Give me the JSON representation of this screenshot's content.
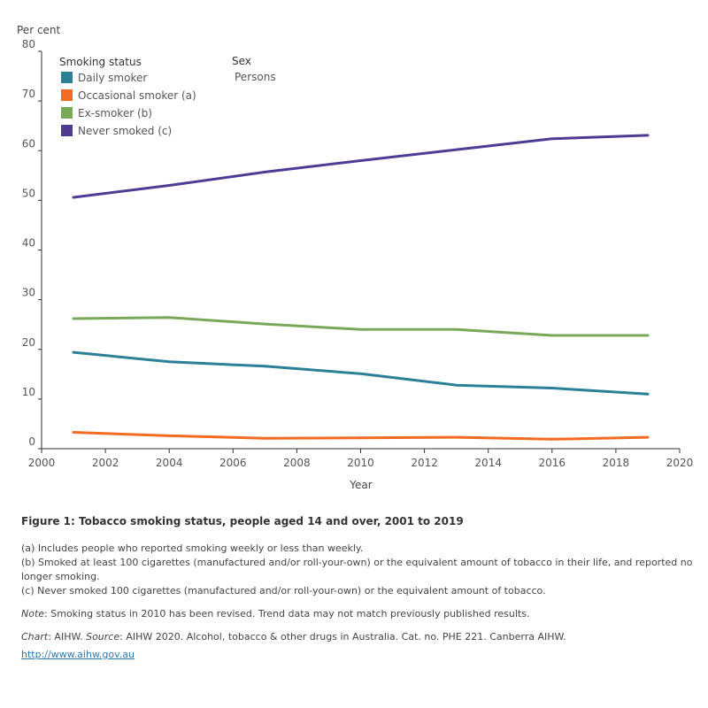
{
  "chart_data": {
    "type": "line",
    "ylabel": "Per cent",
    "xlabel": "Year",
    "ylim": [
      0,
      80
    ],
    "xlim": [
      2000,
      2020
    ],
    "y_ticks": [
      0,
      10,
      20,
      30,
      40,
      50,
      60,
      70,
      80
    ],
    "x_ticks": [
      2000,
      2002,
      2004,
      2006,
      2008,
      2010,
      2012,
      2014,
      2016,
      2018,
      2020
    ],
    "grid": false,
    "legend_title": "Smoking status",
    "legend_position": "top-left",
    "filter": {
      "title": "Sex",
      "value": "Persons"
    },
    "x": [
      2001,
      2004,
      2007,
      2010,
      2013,
      2016,
      2019
    ],
    "series": [
      {
        "name": "Daily smoker",
        "color": "#2b7f96",
        "values": [
          19.4,
          17.5,
          16.6,
          15.1,
          12.8,
          12.2,
          11.0
        ]
      },
      {
        "name": "Occasional smoker (a)",
        "color": "#f26b21",
        "values": [
          3.3,
          2.6,
          2.1,
          2.2,
          2.3,
          1.9,
          2.3
        ]
      },
      {
        "name": "Ex-smoker (b)",
        "color": "#78a95a",
        "values": [
          26.2,
          26.4,
          25.1,
          24.0,
          24.0,
          22.8,
          22.8
        ]
      },
      {
        "name": "Never smoked (c)",
        "color": "#4f3a94",
        "values": [
          50.6,
          53.0,
          55.7,
          58.0,
          60.2,
          62.4,
          63.1
        ]
      }
    ]
  },
  "figure_title": "Figure 1: Tobacco smoking status, people aged 14 and over, 2001 to 2019",
  "footnotes": [
    "(a) Includes people who reported smoking weekly or less than weekly.",
    "(b) Smoked at least 100 cigarettes (manufactured and/or roll-your-own) or the equivalent amount of tobacco in their life, and reported no longer smoking.",
    "(c) Never smoked 100 cigarettes (manufactured and/or roll-your-own) or the equivalent amount of tobacco."
  ],
  "note": {
    "label": "Note",
    "text": ": Smoking status in 2010 has been revised. Trend data may not match previously published results."
  },
  "source": {
    "chart_label": "Chart",
    "chart_text": ": AIHW. ",
    "source_label": "Source",
    "source_text": ": AIHW 2020. Alcohol, tobacco & other drugs in Australia. Cat. no. PHE 221. Canberra AIHW.",
    "link": "http://www.aihw.gov.au"
  }
}
